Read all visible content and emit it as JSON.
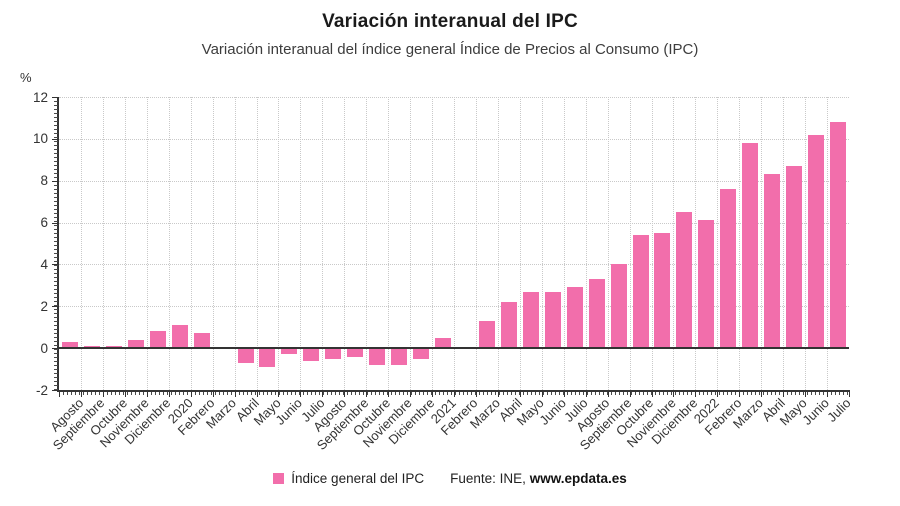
{
  "chart_data": {
    "type": "bar",
    "title": "Variación interanual del IPC",
    "subtitle": "Variación interanual del índice general Índice de Precios al Consumo (IPC)",
    "unit_label": "%",
    "xlabel": "",
    "ylabel": "%",
    "ylim": [
      -2,
      12
    ],
    "y_ticks": [
      12,
      10,
      8,
      6,
      4,
      2,
      0,
      -2
    ],
    "y_gridlines": [
      12,
      10,
      8,
      6,
      4,
      2
    ],
    "grid": true,
    "legend_position": "bottom",
    "categories": [
      "Agosto",
      "Septiembre",
      "Octubre",
      "Noviembre",
      "Diciembre",
      "2020",
      "Febrero",
      "Marzo",
      "Abril",
      "Mayo",
      "Junio",
      "Julio",
      "Agosto",
      "Septiembre",
      "Octubre",
      "Noviembre",
      "Diciembre",
      "2021",
      "Febrero",
      "Marzo",
      "Abril",
      "Mayo",
      "Junio",
      "Julio",
      "Agosto",
      "Septiembre",
      "Octubre",
      "Noviembre",
      "Diciembre",
      "2022",
      "Febrero",
      "Marzo",
      "Abril",
      "Mayo",
      "Junio",
      "Julio"
    ],
    "series": [
      {
        "name": "Índice general del IPC",
        "color": "#f26eab",
        "values": [
          0.3,
          0.1,
          0.1,
          0.4,
          0.8,
          1.1,
          0.7,
          0.0,
          -0.7,
          -0.9,
          -0.3,
          -0.6,
          -0.5,
          -0.4,
          -0.8,
          -0.8,
          -0.5,
          0.5,
          0.0,
          1.3,
          2.2,
          2.7,
          2.7,
          2.9,
          3.3,
          4.0,
          5.4,
          5.5,
          6.5,
          6.1,
          7.6,
          9.8,
          8.3,
          8.7,
          10.2,
          10.8
        ]
      }
    ],
    "source": {
      "prefix": "Fuente: INE,",
      "link": "www.epdata.es"
    }
  },
  "colors": {
    "bar": "#f26eab",
    "axis": "#333333",
    "grid": "#c9c9c9",
    "title": "#1a1a1a"
  }
}
